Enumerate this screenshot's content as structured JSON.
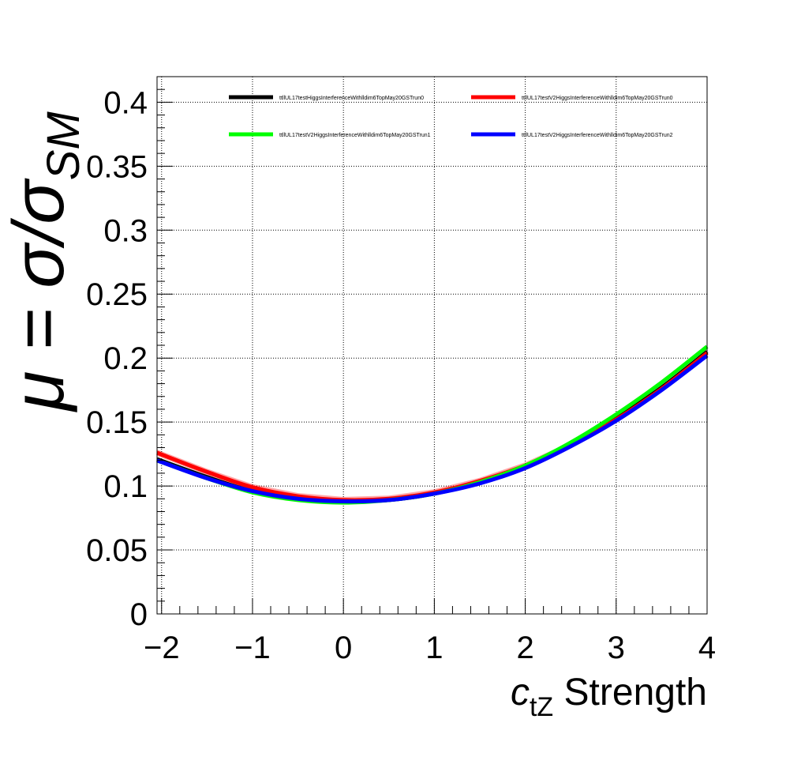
{
  "chart_data": {
    "type": "line",
    "x_axis": {
      "label_symbol": "c",
      "label_subscript": "tZ",
      "label_text": " Strength",
      "range": [
        -2.05,
        4
      ],
      "ticks": [
        -2,
        -1,
        0,
        1,
        2,
        3,
        4
      ],
      "tick_labels": [
        "−2",
        "−1",
        "0",
        "1",
        "2",
        "3",
        "4"
      ]
    },
    "y_axis": {
      "label_mu": "μ = σ/σ",
      "label_subscript": "SM",
      "range": [
        0,
        0.42
      ],
      "ticks": [
        0,
        0.05,
        0.1,
        0.15,
        0.2,
        0.25,
        0.3,
        0.35,
        0.4
      ],
      "tick_labels": [
        "0",
        "0.05",
        "0.1",
        "0.15",
        "0.2",
        "0.25",
        "0.3",
        "0.35",
        "0.4"
      ]
    },
    "grid": true,
    "legend_placement": "top",
    "series": [
      {
        "name": "ttllUL17testHiggsInterferenceWithlldim6TopMay20GSTrun0",
        "color": "#000000",
        "x": [
          -2.05,
          -1.5,
          -1,
          -0.5,
          0,
          0.5,
          1,
          1.5,
          2,
          2.5,
          3,
          3.5,
          4
        ],
        "y": [
          0.121,
          0.107,
          0.096,
          0.09,
          0.088,
          0.089,
          0.094,
          0.103,
          0.115,
          0.132,
          0.153,
          0.177,
          0.205
        ]
      },
      {
        "name": "ttllUL17testV2HiggsInterferenceWithlldim6TopMay20GSTrun0",
        "color": "#ff0000",
        "band": true,
        "x": [
          -2.05,
          -1.5,
          -1,
          -0.5,
          0,
          0.5,
          1,
          1.5,
          2,
          2.5,
          3,
          3.5,
          4
        ],
        "y": [
          0.126,
          0.111,
          0.099,
          0.092,
          0.089,
          0.09,
          0.095,
          0.104,
          0.116,
          0.132,
          0.152,
          0.176,
          0.204
        ]
      },
      {
        "name": "ttllUL17testV2HiggsInterferenceWithlldim6TopMay20GSTrun1",
        "color": "#00ff00",
        "x": [
          -2.05,
          -1.5,
          -1,
          -0.5,
          0,
          0.5,
          1,
          1.5,
          2,
          2.5,
          3,
          3.5,
          4
        ],
        "y": [
          0.12,
          0.106,
          0.095,
          0.089,
          0.087,
          0.089,
          0.094,
          0.103,
          0.116,
          0.134,
          0.156,
          0.181,
          0.209
        ]
      },
      {
        "name": "ttllUL17testV2HiggsInterferenceWithlldim6TopMay20GSTrun2",
        "color": "#0000ff",
        "x": [
          -2.05,
          -1.5,
          -1,
          -0.5,
          0,
          0.5,
          1,
          1.5,
          2,
          2.5,
          3,
          3.5,
          4
        ],
        "y": [
          0.12,
          0.106,
          0.096,
          0.09,
          0.088,
          0.089,
          0.094,
          0.102,
          0.114,
          0.131,
          0.151,
          0.175,
          0.202
        ]
      }
    ]
  }
}
